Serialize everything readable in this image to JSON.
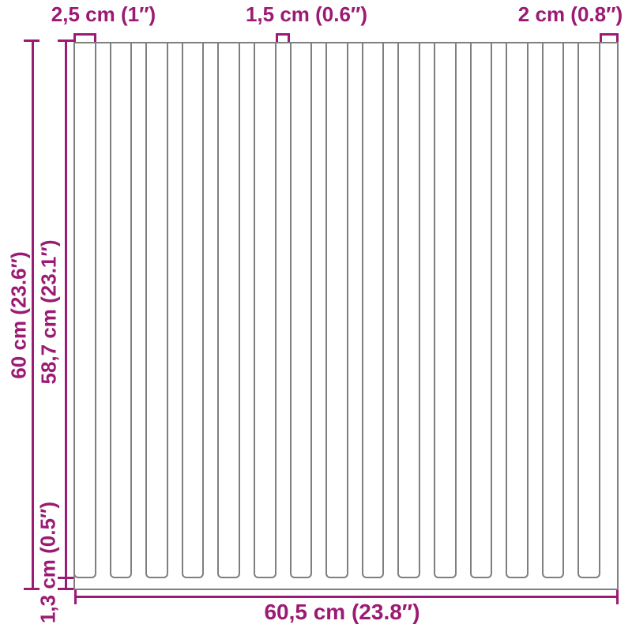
{
  "figure": {
    "kind": "slatted-panel-dimension-diagram",
    "slat_count": 15,
    "labels": {
      "slat_width": "2,5 cm (1″)",
      "gap_width": "1,5 cm (0.6″)",
      "end_width": "2 cm (0.8″)",
      "total_height": "60 cm (23.6″)",
      "slat_height": "58,7 cm (23.1″)",
      "base_height": "1,3 cm (0.5″)",
      "total_width": "60,5 cm (23.8″)"
    },
    "colors": {
      "dimension": "#9B1A74",
      "outline": "#7F7F7F",
      "background": "#FFFFFF"
    }
  }
}
